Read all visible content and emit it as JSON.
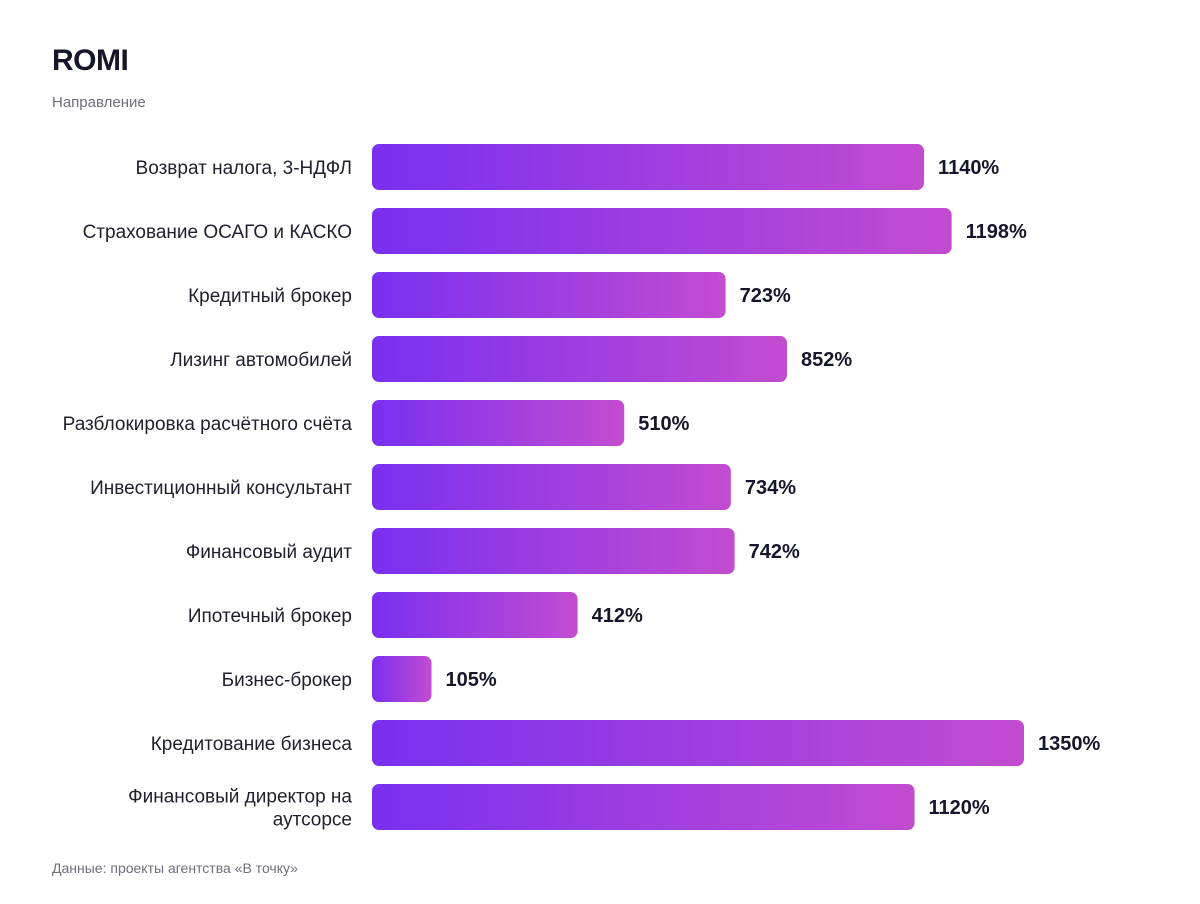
{
  "chart_data": {
    "type": "bar",
    "orientation": "horizontal",
    "title": "ROMI",
    "subtitle": "Направление",
    "source": "Данные: проекты агентства «В точку»",
    "categories": [
      [
        "Возврат налога, 3-НДФЛ"
      ],
      [
        "Страхование ОСАГО и КАСКО"
      ],
      [
        "Кредитный брокер"
      ],
      [
        "Лизинг автомобилей"
      ],
      [
        "Разблокировка расчётного счёта"
      ],
      [
        "Инвестиционный консультант"
      ],
      [
        "Финансовый аудит"
      ],
      [
        "Ипотечный брокер"
      ],
      [
        "Бизнес-брокер"
      ],
      [
        "Кредитование бизнеса"
      ],
      [
        "Финансовый директор на",
        "аутсорсе"
      ]
    ],
    "values": [
      1140,
      1198,
      723,
      852,
      510,
      734,
      742,
      412,
      105,
      1350,
      1120
    ],
    "value_labels": [
      "1140%",
      "1198%",
      "723%",
      "852%",
      "510%",
      "734%",
      "742%",
      "412%",
      "105%",
      "1350%",
      "1120%"
    ],
    "xlim": [
      -20,
      1350
    ],
    "grid": false,
    "colors": {
      "bar_start": "#7a2ff0",
      "bar_end": "#c24cd0"
    }
  }
}
